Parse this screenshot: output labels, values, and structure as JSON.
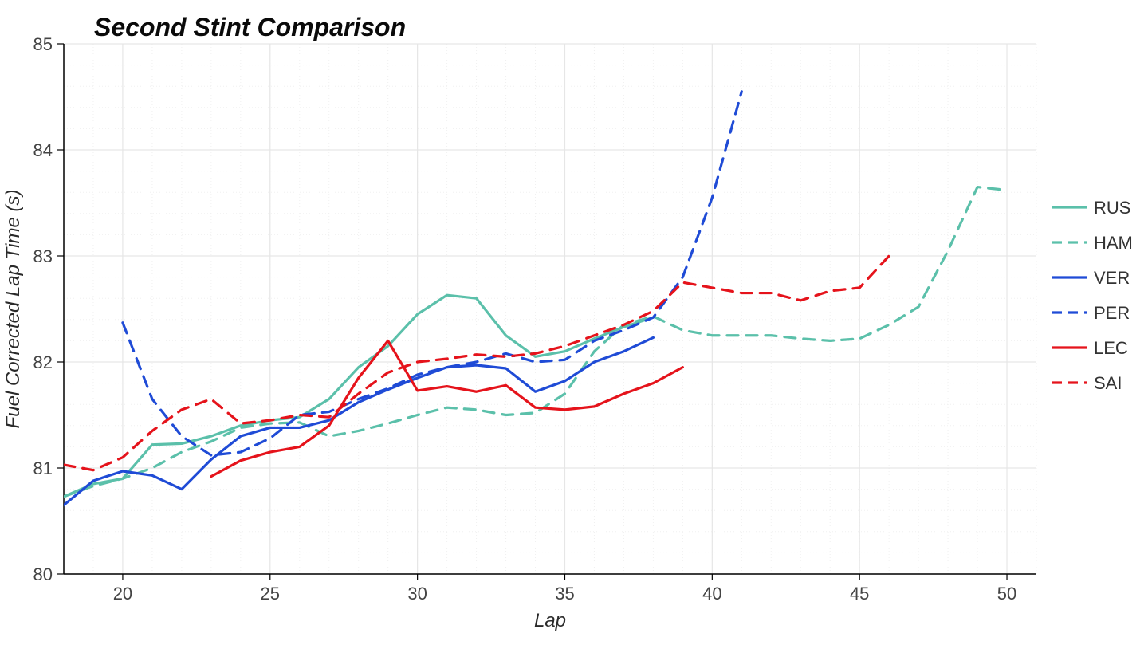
{
  "chart": {
    "type": "line",
    "title": "Second Stint Comparison",
    "title_fontsize": 32,
    "xlabel": "Lap",
    "ylabel": "Fuel Corrected Lap Time (s)",
    "label_fontsize": 24,
    "tick_fontsize": 22,
    "legend_fontsize": 22,
    "xlim": [
      18,
      51
    ],
    "ylim": [
      80,
      85
    ],
    "xticks": [
      20,
      25,
      30,
      35,
      40,
      45,
      50
    ],
    "yticks": [
      80,
      81,
      82,
      83,
      84,
      85
    ],
    "grid_color": "#e6e6e6",
    "minor_grid_color": "#f0f0f0",
    "background_color": "#ffffff",
    "axis_line_color": "#000000",
    "line_width": 3.2,
    "legend_position": "right",
    "series": [
      {
        "name": "RUS",
        "color": "#5bc0aa",
        "dash": "solid",
        "x": [
          18,
          19,
          20,
          21,
          22,
          23,
          24,
          25,
          26,
          27,
          28,
          29,
          30,
          31,
          32,
          33,
          34,
          35,
          36,
          37,
          38
        ],
        "y": [
          80.73,
          80.85,
          80.9,
          81.22,
          81.23,
          81.3,
          81.4,
          81.45,
          81.48,
          81.65,
          81.95,
          82.15,
          82.45,
          82.63,
          82.6,
          82.25,
          82.05,
          82.1,
          82.22,
          82.33,
          82.42
        ]
      },
      {
        "name": "HAM",
        "color": "#5bc0aa",
        "dash": "dashed",
        "x": [
          18,
          19,
          20,
          21,
          22,
          23,
          24,
          25,
          26,
          27,
          28,
          29,
          30,
          31,
          32,
          33,
          34,
          35,
          36,
          37,
          38,
          39,
          40,
          41,
          42,
          43,
          44,
          45,
          46,
          47,
          48,
          49,
          50
        ],
        "y": [
          80.73,
          80.83,
          80.9,
          81.0,
          81.15,
          81.25,
          81.38,
          81.42,
          81.43,
          81.3,
          81.35,
          81.42,
          81.5,
          81.57,
          81.55,
          81.5,
          81.52,
          81.7,
          82.1,
          82.35,
          82.43,
          82.3,
          82.25,
          82.25,
          82.25,
          82.22,
          82.2,
          82.22,
          82.35,
          82.52,
          83.05,
          83.65,
          83.62
        ]
      },
      {
        "name": "VER",
        "color": "#1f4bd6",
        "dash": "solid",
        "x": [
          18,
          19,
          20,
          21,
          22,
          23,
          24,
          25,
          26,
          27,
          28,
          29,
          30,
          31,
          32,
          33,
          34,
          35,
          36,
          37,
          38
        ],
        "y": [
          80.65,
          80.88,
          80.97,
          80.93,
          80.8,
          81.08,
          81.3,
          81.38,
          81.38,
          81.45,
          81.62,
          81.74,
          81.85,
          81.95,
          81.97,
          81.94,
          81.72,
          81.82,
          82.0,
          82.1,
          82.23
        ]
      },
      {
        "name": "PER",
        "color": "#1f4bd6",
        "dash": "dashed",
        "x": [
          20,
          21,
          22,
          23,
          24,
          25,
          26,
          27,
          28,
          29,
          30,
          31,
          32,
          33,
          34,
          35,
          36,
          37,
          38,
          39,
          40,
          41
        ],
        "y": [
          82.37,
          81.65,
          81.3,
          81.12,
          81.15,
          81.28,
          81.5,
          81.53,
          81.65,
          81.75,
          81.88,
          81.95,
          82.0,
          82.08,
          82.0,
          82.02,
          82.2,
          82.3,
          82.42,
          82.8,
          83.55,
          84.55
        ]
      },
      {
        "name": "LEC",
        "color": "#e5131b",
        "dash": "solid",
        "x": [
          23,
          24,
          25,
          26,
          27,
          28,
          29,
          30,
          31,
          32,
          33,
          34,
          35,
          36,
          37,
          38,
          39
        ],
        "y": [
          80.92,
          81.07,
          81.15,
          81.2,
          81.4,
          81.85,
          82.2,
          81.73,
          81.77,
          81.72,
          81.78,
          81.57,
          81.55,
          81.58,
          81.7,
          81.8,
          81.95
        ]
      },
      {
        "name": "SAI",
        "color": "#e5131b",
        "dash": "dashed",
        "x": [
          18,
          19,
          20,
          21,
          22,
          23,
          24,
          25,
          26,
          27,
          28,
          29,
          30,
          31,
          32,
          33,
          34,
          35,
          36,
          37,
          38,
          39,
          40,
          41,
          42,
          43,
          44,
          45,
          46
        ],
        "y": [
          81.03,
          80.98,
          81.1,
          81.35,
          81.55,
          81.65,
          81.42,
          81.45,
          81.5,
          81.48,
          81.7,
          81.9,
          82.0,
          82.03,
          82.07,
          82.05,
          82.08,
          82.15,
          82.25,
          82.35,
          82.48,
          82.75,
          82.7,
          82.65,
          82.65,
          82.58,
          82.67,
          82.7,
          83.0
        ]
      }
    ]
  }
}
